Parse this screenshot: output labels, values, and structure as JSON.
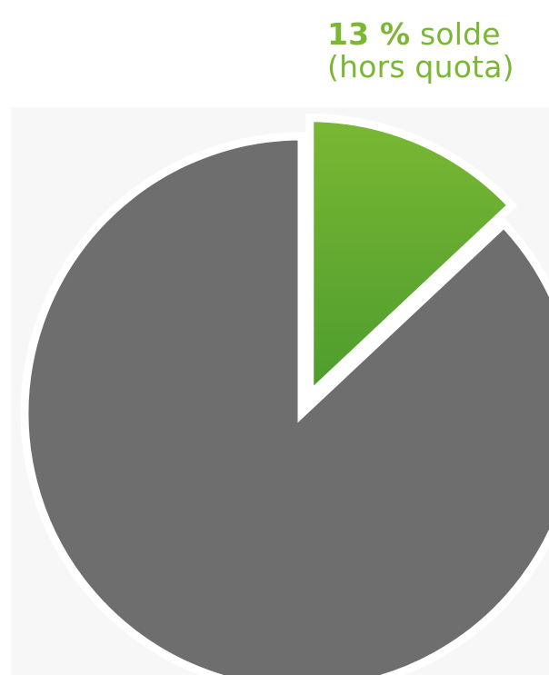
{
  "chart_data": {
    "type": "pie",
    "slices": [
      {
        "label": "solde (hors quota)",
        "value": 13,
        "color": "#7ab833",
        "exploded": true
      },
      {
        "label": "",
        "value": 87,
        "color": "#6e6e6e",
        "exploded": false
      }
    ],
    "annotation": {
      "percent_text": "13 %",
      "label_line1": "solde",
      "label_line2": "(hors quota)"
    },
    "start": "12 o'clock",
    "direction": "clockwise"
  },
  "colors": {
    "accent": "#7ab833",
    "gradient_dark": "#4d9c2d",
    "remainder": "#6e6e6e",
    "background": "#f7f7f7"
  }
}
